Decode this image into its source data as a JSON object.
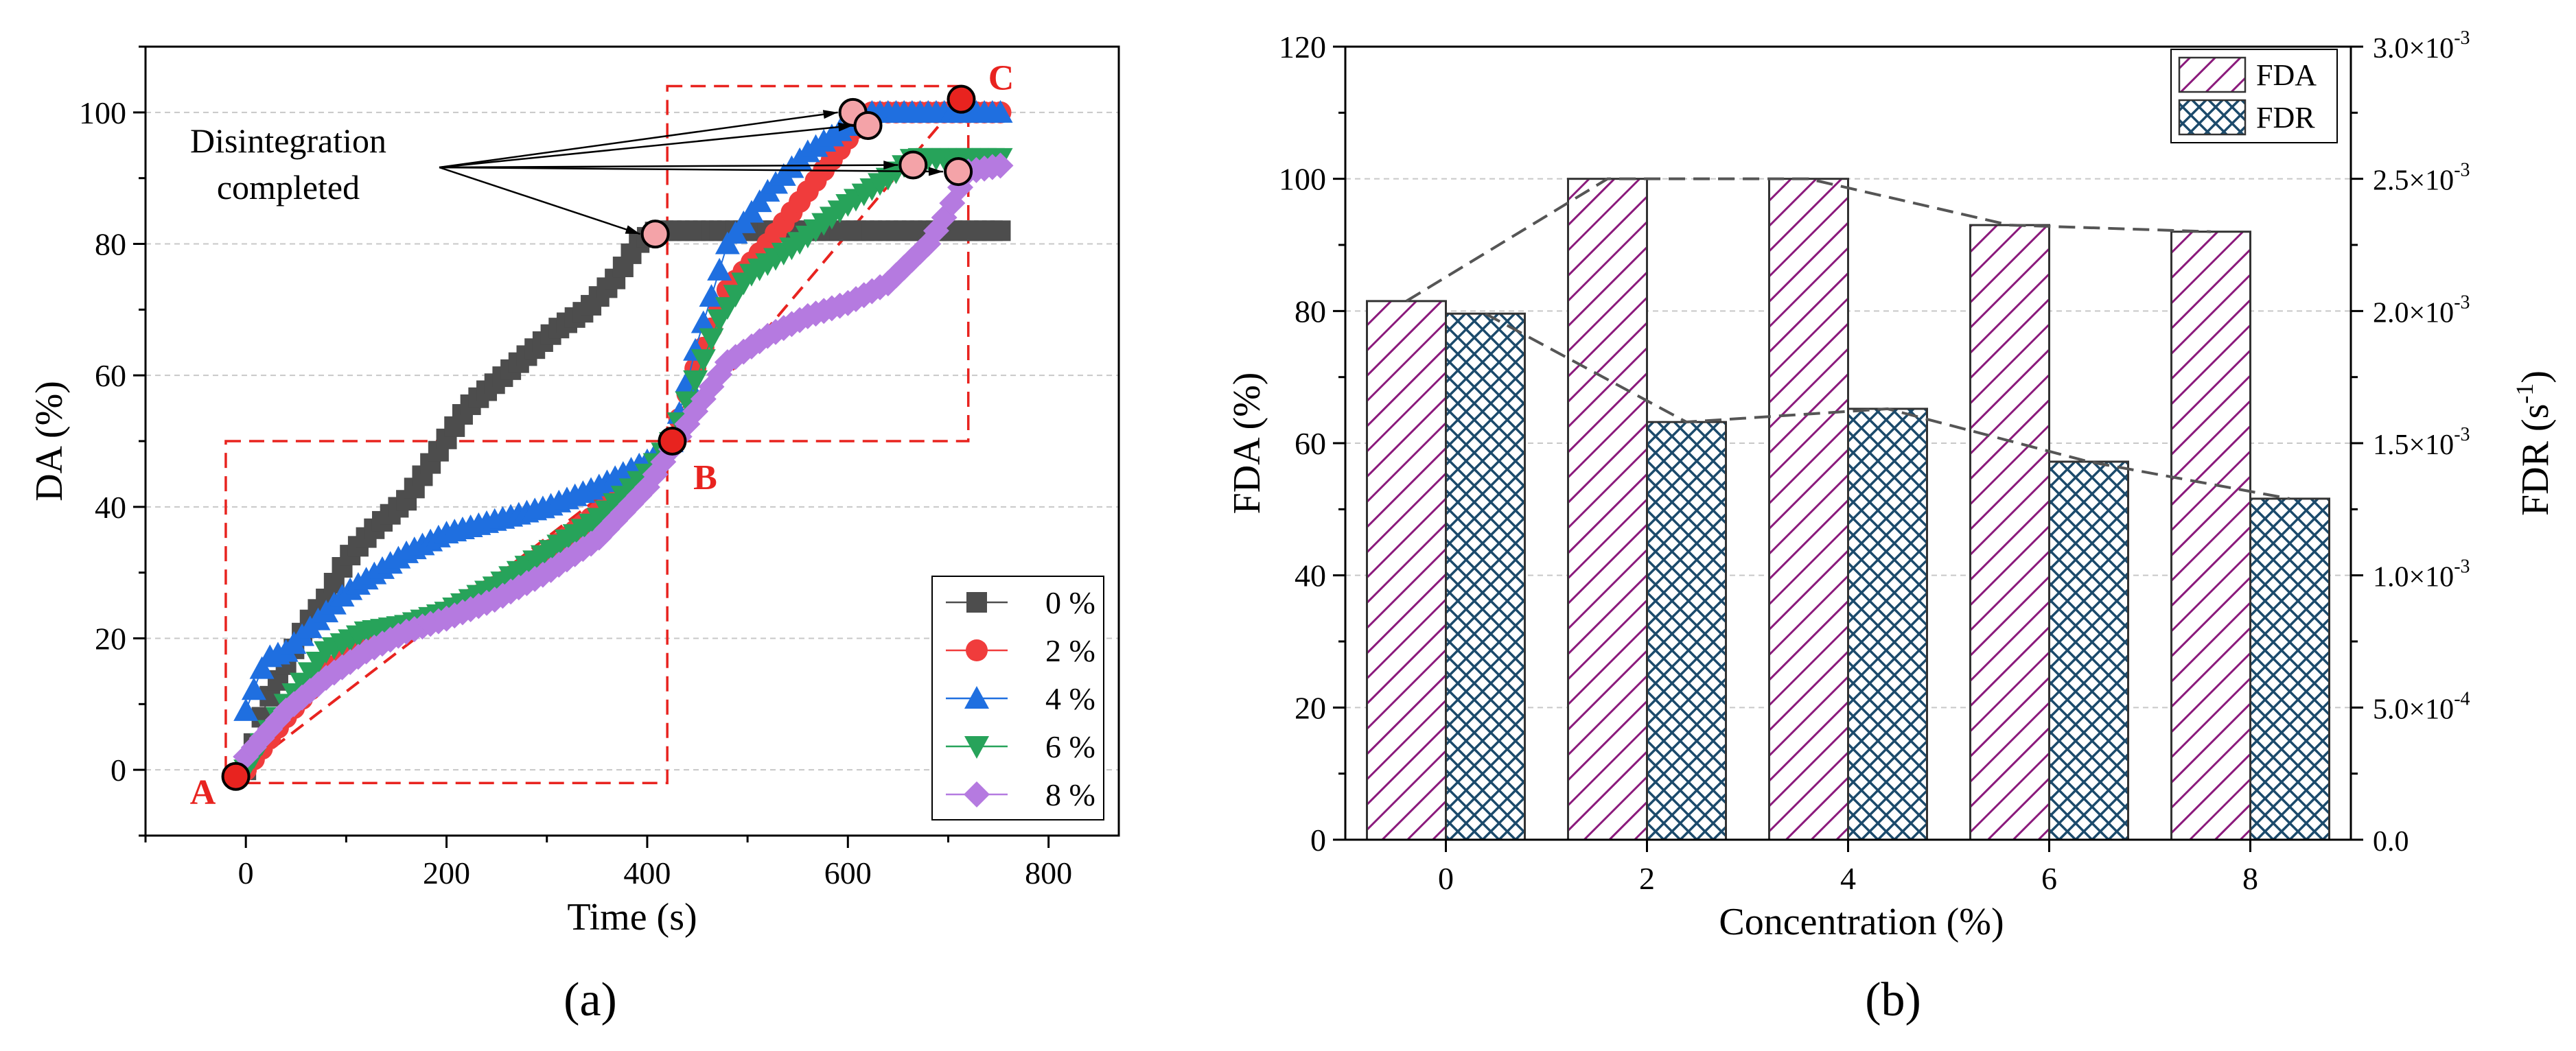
{
  "panel_a": {
    "caption": "(a)",
    "annotation": [
      "Disintegration",
      "completed"
    ],
    "points": [
      "A",
      "B",
      "C"
    ]
  },
  "panel_b": {
    "caption": "(b)"
  },
  "colors": {
    "s0": "#4d4d4d",
    "s2": "#f03c3c",
    "s4": "#1f6fe0",
    "s6": "#27a35a",
    "s8": "#b57ae0",
    "guide": "#e8231f",
    "marker_fill": "#f4a3a8",
    "fda": "#8b1a7c",
    "fdr": "#1b4a6b",
    "trend": "#555555"
  },
  "chart_data": [
    {
      "type": "scatter",
      "title": "",
      "xlabel": "Time (s)",
      "ylabel": "DA (%)",
      "xlim": [
        -100,
        870
      ],
      "ylim": [
        -10,
        110
      ],
      "xticks": [
        0,
        200,
        400,
        600,
        800
      ],
      "yticks": [
        0,
        20,
        40,
        60,
        80,
        100
      ],
      "grid": "horizontal dashed",
      "legend_position": "bottom-right",
      "series": [
        {
          "name": "0 %",
          "marker": "square",
          "x": [
            0,
            20,
            40,
            60,
            80,
            100,
            130,
            160,
            190,
            220,
            250,
            280,
            310,
            340,
            370,
            390,
            410,
            450,
            500,
            550,
            600,
            650,
            700,
            755
          ],
          "y": [
            0,
            10,
            16,
            22,
            26,
            32,
            37,
            41,
            48,
            55,
            59,
            63,
            67,
            70,
            75,
            80,
            82,
            82,
            82,
            82,
            82,
            82,
            82,
            82
          ]
        },
        {
          "name": "2 %",
          "marker": "circle",
          "x": [
            0,
            40,
            80,
            120,
            160,
            200,
            250,
            300,
            350,
            400,
            425,
            450,
            480,
            520,
            560,
            600,
            620,
            650,
            700,
            755
          ],
          "y": [
            0,
            8,
            15,
            19,
            22,
            24,
            28,
            33,
            39,
            45,
            50,
            62,
            73,
            80,
            88,
            96,
            100,
            100,
            100,
            100
          ]
        },
        {
          "name": "4 %",
          "marker": "triangle-up",
          "x": [
            0,
            20,
            40,
            60,
            80,
            100,
            130,
            160,
            200,
            250,
            300,
            350,
            400,
            425,
            450,
            480,
            520,
            560,
            600,
            620,
            650,
            700,
            755
          ],
          "y": [
            9,
            17,
            18,
            21,
            24,
            27,
            30,
            33,
            36,
            38,
            40,
            43,
            47,
            50,
            65,
            80,
            88,
            94,
            98,
            100,
            100,
            100,
            100
          ]
        },
        {
          "name": "6 %",
          "marker": "triangle-down",
          "x": [
            0,
            40,
            80,
            120,
            160,
            200,
            250,
            300,
            350,
            400,
            425,
            450,
            470,
            500,
            550,
            600,
            640,
            665,
            700,
            755
          ],
          "y": [
            0,
            10,
            18,
            21,
            22,
            24,
            28,
            33,
            38,
            45,
            50,
            60,
            68,
            75,
            80,
            86,
            90,
            93,
            93,
            93
          ]
        },
        {
          "name": "8 %",
          "marker": "diamond",
          "x": [
            0,
            40,
            80,
            120,
            160,
            200,
            250,
            300,
            350,
            400,
            425,
            450,
            480,
            520,
            560,
            600,
            640,
            680,
            700,
            720,
            755
          ],
          "y": [
            2,
            9,
            14,
            18,
            21,
            23,
            26,
            30,
            35,
            43,
            49,
            55,
            62,
            66,
            69,
            71,
            74,
            80,
            85,
            91,
            92
          ]
        }
      ],
      "highlighted_points": [
        {
          "label": "A",
          "x": -10,
          "y": -1
        },
        {
          "label": "B",
          "x": 425,
          "y": 50
        },
        {
          "label": "C",
          "x": 713,
          "y": 102
        }
      ],
      "completion_points": [
        {
          "x": 408,
          "y": 81.5
        },
        {
          "x": 605,
          "y": 100
        },
        {
          "x": 620,
          "y": 98
        },
        {
          "x": 665,
          "y": 92
        },
        {
          "x": 710,
          "y": 91
        }
      ],
      "guide_boxes": [
        {
          "x": [
            -20,
            420
          ],
          "y": [
            -2,
            50
          ]
        },
        {
          "x": [
            420,
            720
          ],
          "y": [
            50,
            104
          ]
        }
      ],
      "guide_lines": [
        {
          "from": [
            -10,
            -1
          ],
          "to": [
            425,
            50
          ]
        },
        {
          "from": [
            425,
            50
          ],
          "to": [
            713,
            102
          ]
        }
      ]
    },
    {
      "type": "bar",
      "title": "",
      "xlabel": "Concentration (%)",
      "ylabel": "FDA (%)",
      "y2label": "FDR (s-1)",
      "categories": [
        "0",
        "2",
        "4",
        "6",
        "8"
      ],
      "ylim": [
        0,
        120
      ],
      "yticks": [
        0,
        20,
        40,
        60,
        80,
        100,
        120
      ],
      "y2lim": [
        0,
        0.003
      ],
      "y2ticks": [
        "0.0",
        "5.0×10-4",
        "1.0×10-3",
        "1.5×10-3",
        "2.0×10-3",
        "2.5×10-3",
        "3.0×10-3"
      ],
      "legend_position": "top-right",
      "series": [
        {
          "name": "FDA",
          "axis": "left",
          "pattern": "diagonal-hatch",
          "values": [
            81.5,
            100,
            100,
            93,
            92
          ]
        },
        {
          "name": "FDR",
          "axis": "right",
          "pattern": "cross-hatch",
          "values": [
            0.00199,
            0.00158,
            0.00163,
            0.00143,
            0.00129
          ]
        }
      ],
      "trend_lines": "dashed lines connecting bar tops"
    }
  ]
}
